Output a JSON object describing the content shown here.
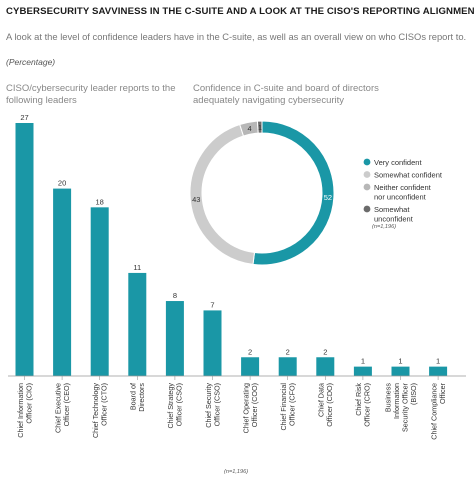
{
  "header": {
    "title": "CYBERSECURITY SAVVINESS IN THE C-SUITE AND A LOOK AT THE CISO'S REPORTING ALIGNMENT",
    "subtitle": "A look at the level of confidence leaders have in the C-suite, as well as an overall view on who CISOs report to.",
    "note": "(Percentage)"
  },
  "colors": {
    "teal": "#1a97a6",
    "light_gray": "#cccccc",
    "mid_gray": "#b7b7b7",
    "dark_gray": "#6b6b6b"
  },
  "chart_data": [
    {
      "type": "bar",
      "title": "CISO/cybersecurity leader reports to the following leaders",
      "categories": [
        "Chief Information Officer (CIO)",
        "Chief Executive Officer (CEO)",
        "Chief Technology Officer (CTO)",
        "Board of Directors",
        "Chief Strategy Officer (CSO)",
        "Chief Security Officer (CSO)",
        "Chief Operating Officer (COO)",
        "Chief Financial Officer (CFO)",
        "Chief Data Officer (CDO)",
        "Chief Risk Officer (CRO)",
        "Business Information Security Officer (BISO)",
        "Chief Compliance Officer"
      ],
      "values": [
        27,
        20,
        18,
        11,
        8,
        7,
        2,
        2,
        2,
        1,
        1,
        1
      ],
      "ylim": [
        0,
        27
      ],
      "grid": false,
      "note": "(n=1,196)"
    },
    {
      "type": "pie",
      "subtype": "donut",
      "title": "Confidence in C-suite and board of directors adequately navigating cybersecurity",
      "labels": [
        "Very confident",
        "Somewhat confident",
        "Neither confident nor unconfident",
        "Somewhat unconfident"
      ],
      "values": [
        52,
        43,
        4,
        1
      ],
      "legend": "right",
      "note": "(n=1,196)"
    }
  ]
}
